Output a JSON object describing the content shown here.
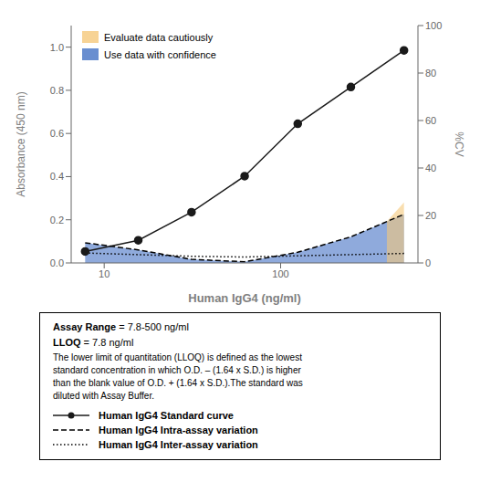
{
  "chart_data": {
    "type": "line",
    "xlabel": "Human IgG4 (ng/ml)",
    "ylabel": "Absorbance (450 nm)",
    "y2label": "%CV",
    "log": "x",
    "xlim": [
      6.5,
      600
    ],
    "xticks": [
      10,
      100
    ],
    "ylim": [
      0,
      1.1
    ],
    "yticks": [
      0.0,
      0.2,
      0.4,
      0.6,
      0.8,
      1.0
    ],
    "y2lim": [
      0,
      100
    ],
    "y2ticks": [
      0,
      20,
      40,
      60,
      80,
      100
    ],
    "grid": false,
    "legend": "upper left",
    "series": [
      {
        "name": "Evaluate data cautiously",
        "type": "area",
        "axis": "y2",
        "color": "#F5C87A",
        "x": [
          400,
          500
        ],
        "values": [
          17.5,
          25.5
        ]
      },
      {
        "name": "Use data with confidence",
        "type": "area",
        "axis": "y2",
        "color": "#4472C4",
        "x": [
          7.8,
          15.6,
          31.25,
          62.5,
          125,
          250,
          400,
          500
        ],
        "values": [
          8.5,
          5.5,
          1.5,
          0.5,
          4.5,
          11.0,
          17.5,
          20.5
        ]
      },
      {
        "name": "Human IgG4 Standard curve",
        "type": "line",
        "axis": "y",
        "color": "#1a1a1a",
        "marker": "o",
        "line_style": "solid",
        "x": [
          7.8,
          15.6,
          31.25,
          62.5,
          125,
          250,
          500
        ],
        "values": [
          0.053,
          0.105,
          0.235,
          0.402,
          0.645,
          0.815,
          0.985
        ]
      },
      {
        "name": "Human IgG4 Intra-assay variation",
        "type": "line",
        "axis": "y2",
        "color": "#000000",
        "line_style": "dashed",
        "x": [
          7.8,
          15.6,
          31.25,
          62.5,
          125,
          250,
          500
        ],
        "values": [
          8.5,
          5.5,
          1.5,
          0.5,
          4.5,
          11.0,
          20.5
        ]
      },
      {
        "name": "Human IgG4 Inter-assay variation",
        "type": "line",
        "axis": "y2",
        "color": "#000000",
        "line_style": "dotted",
        "x": [
          7.8,
          15.6,
          31.25,
          62.5,
          125,
          250,
          500
        ],
        "values": [
          4.2,
          3.5,
          2.8,
          2.5,
          3.0,
          3.5,
          4.0
        ]
      }
    ],
    "annotations": [
      [
        "Assay Range",
        " = 7.8-500 ng/ml"
      ],
      [
        "LLOQ",
        " = 7.8 ng/ml"
      ],
      [
        "The lower limit of quantitation (LLOQ) is defined as the lowest\nstandard concentration in which O.D. – (1.64 x S.D.) is higher\nthan the blank value of O.D. + (1.64 x S.D.).The standard was\ndiluted with Assay Buffer."
      ]
    ]
  }
}
